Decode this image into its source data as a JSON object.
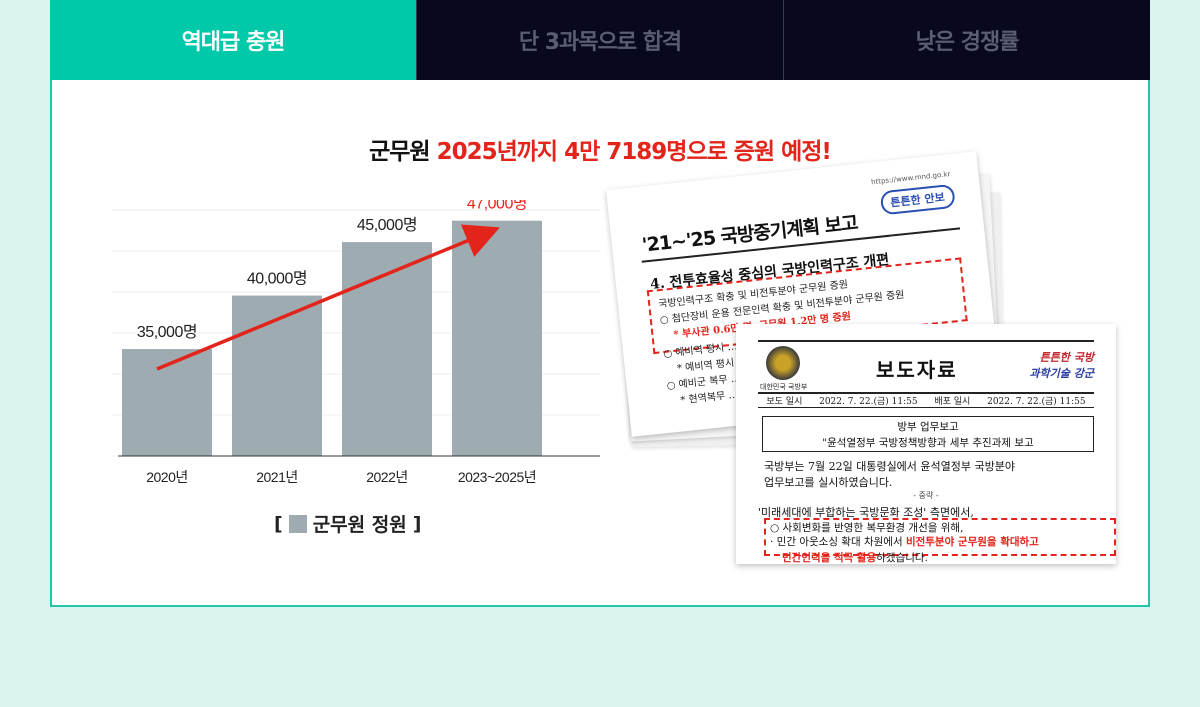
{
  "tabs": [
    {
      "label": "역대급 충원"
    },
    {
      "label": "단 3과목으로 합격"
    },
    {
      "label": "낮은 경쟁률"
    }
  ],
  "headline": {
    "prefix": "군무원 ",
    "highlight": "2025년까지 4만 7189명으로 증원 예정!"
  },
  "chart_data": {
    "type": "bar",
    "categories": [
      "2020년",
      "2021년",
      "2022년",
      "2023~2025년"
    ],
    "values": [
      35000,
      40000,
      45000,
      47000
    ],
    "data_labels": [
      "35,000명",
      "40,000명",
      "45,000명",
      "47,000명"
    ],
    "ylim": [
      25000,
      48000
    ],
    "grid": true,
    "bar_color": "#9eabb0",
    "highlight_label_color": "#e3241b",
    "trend_arrow_color": "#e3241b",
    "legend": "군무원 정원",
    "legend_placement": "bottom"
  },
  "doc1": {
    "url": "https://www.mnd.go.kr",
    "title": "'21~'25 국방중기계획 보고",
    "mark": "튼튼한 안보",
    "subtitle": "4. 전투효율성 중심의 국방인력구조 개편",
    "lines": [
      "국방인력구조 확충 및 비전투분야 군무원 증원",
      "○ 첨단장비 운용 전문인력 확충 및 비전투분야 군무원 증원",
      "* 부사관 0.6만 명, 군무원 1.2만 명 증원",
      "○ 예비역 평시 … 확대, 동원부대 전력보강",
      "* 예비역 평시 … 4,556명으로 확대",
      "○ 예비군 복무 …",
      "* 현역복무 …"
    ]
  },
  "doc2": {
    "ministry": "대한민국 국방부",
    "title": "보도자료",
    "slogan_line1": "튼튼한 국방",
    "slogan_line2": "과학기술 강군",
    "info": [
      "보도 일시",
      "2022. 7. 22.(금) 11:55",
      "배포 일시",
      "2022. 7. 22.(금) 11:55"
    ],
    "box_line1": "방부 업무보고",
    "box_line2": "\"윤석열정부 국방정책방향과 세부 추진과제 보고",
    "p1": "국방부는 7월 22일 대통령실에서 윤석열정부 국방분야",
    "p2": "업무보고를 실시하였습니다.",
    "mid": "- 중략 -",
    "p3": "'미래세대에 부합하는 국방문화 조성' 측면에서,",
    "p4": "○ 사회변화를 반영한 복무환경 개선을 위해,",
    "p5_a": "· 민간 아웃소싱 확대 차원에서 ",
    "p5_red": "비전투분야 군무원을 확대하고",
    "p6_red": "민간인력을 적극 활용",
    "p6_b": "하겠습니다."
  }
}
